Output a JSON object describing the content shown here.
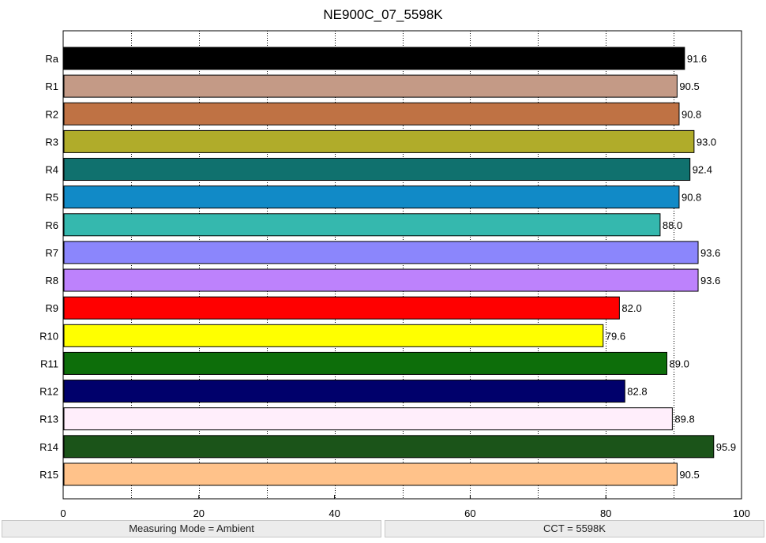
{
  "chart_data": {
    "type": "bar",
    "orientation": "horizontal",
    "title": "NE900C_07_5598K",
    "xlabel": "",
    "ylabel": "",
    "xlim": [
      0,
      100
    ],
    "x_ticks": [
      0,
      20,
      40,
      60,
      80,
      100
    ],
    "grid": "vertical dotted",
    "categories": [
      "Ra",
      "R1",
      "R2",
      "R3",
      "R4",
      "R5",
      "R6",
      "R7",
      "R8",
      "R9",
      "R10",
      "R11",
      "R12",
      "R13",
      "R14",
      "R15"
    ],
    "values": [
      91.6,
      90.5,
      90.8,
      93.0,
      92.4,
      90.8,
      88.0,
      93.6,
      93.6,
      82.0,
      79.6,
      89.0,
      82.8,
      89.8,
      95.9,
      90.5
    ],
    "value_labels": [
      "91.6",
      "90.5",
      "90.8",
      "93.0",
      "92.4",
      "90.8",
      "88.0",
      "93.6",
      "93.6",
      "82.0",
      "79.6",
      "89.0",
      "82.8",
      "89.8",
      "95.9",
      "90.5"
    ],
    "colors": [
      "#000000",
      "#c49a86",
      "#bf7244",
      "#b0ac2a",
      "#10716e",
      "#118ac7",
      "#35b8ae",
      "#8b86fc",
      "#bd82fc",
      "#ff0000",
      "#ffff00",
      "#0d6e0a",
      "#00006b",
      "#ffeefb",
      "#1b5419",
      "#ffc28a"
    ]
  },
  "status": {
    "measuring_mode": "Measuring Mode = Ambient",
    "cct": "CCT = 5598K"
  }
}
